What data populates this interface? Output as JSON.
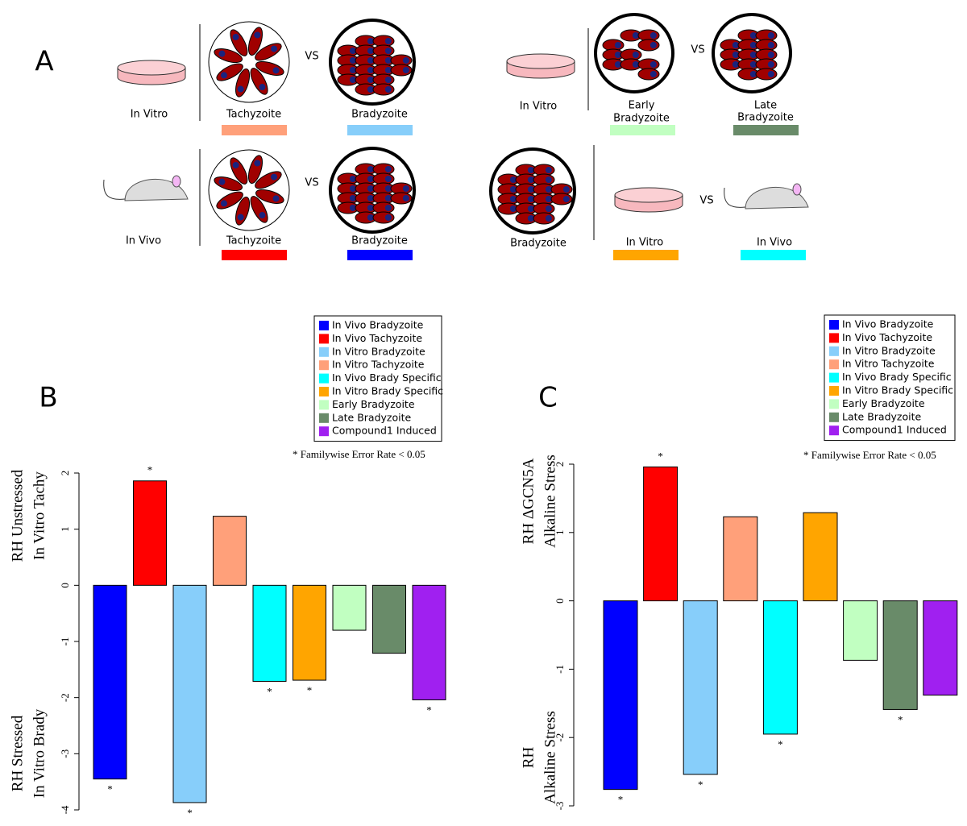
{
  "diagram": {
    "labels": [
      "A",
      "In Vitro",
      "Tachyzoite",
      "VS",
      "Bradyzoite",
      "In Vitro",
      "Early",
      "Bradyzoite",
      "VS",
      "Late",
      "Bradyzoite",
      "In Vivo",
      "Tachyzoite",
      "VS",
      "Bradyzoite",
      "Bradyzoite",
      "In Vitro",
      "VS",
      "In Vivo"
    ]
  },
  "chart_data": [
    {
      "type": "bar",
      "panel_label": "B",
      "ylabel_top": [
        "RH Unstressed",
        "In Vitro Tachy"
      ],
      "ylabel_bottom": [
        "RH Stressed",
        "In Vitro Brady"
      ],
      "footnote": "* Familywise Error Rate < 0.05",
      "ylim": [
        -4,
        2
      ],
      "yticks": [
        -4,
        -3,
        -2,
        -1,
        0,
        1,
        2
      ],
      "series": [
        {
          "name": "In Vivo Bradyzoite",
          "color": "#0000ff",
          "values": [
            -3.45
          ],
          "annotation": "*"
        },
        {
          "name": "In Vivo Tachyzoite",
          "color": "#ff0000",
          "values": [
            1.86
          ],
          "annotation": "*"
        },
        {
          "name": "In Vitro Bradyzoite",
          "color": "#87cefa",
          "values": [
            -3.87
          ],
          "annotation": "*"
        },
        {
          "name": "In Vitro Tachyzoite",
          "color": "#ffa07a",
          "values": [
            1.23
          ]
        },
        {
          "name": "In Vivo Brady Specific",
          "color": "#00ffff",
          "values": [
            -1.71
          ],
          "annotation": "*"
        },
        {
          "name": "In Vitro Brady Specific",
          "color": "#ffa500",
          "values": [
            -1.69
          ],
          "annotation": "*"
        },
        {
          "name": "Early Bradyzoite",
          "color": "#c1ffc1",
          "values": [
            -0.8
          ]
        },
        {
          "name": "Late Bradyzoite",
          "color": "#698b69",
          "values": [
            -1.21
          ]
        },
        {
          "name": "Compound1 Induced",
          "color": "#a020f0",
          "values": [
            -2.04
          ],
          "annotation": "*"
        }
      ]
    },
    {
      "type": "bar",
      "panel_label": "C",
      "ylabel_top": [
        "RH ΔGCN5A",
        "Alkaline Stress"
      ],
      "ylabel_bottom": [
        "RH",
        "Alkaline Stress"
      ],
      "footnote": "* Familywise Error Rate < 0.05",
      "ylim": [
        -3,
        2
      ],
      "yticks": [
        -3,
        -2,
        -1,
        0,
        1,
        2
      ],
      "series": [
        {
          "name": "In Vivo Bradyzoite",
          "color": "#0000ff",
          "values": [
            -2.76
          ],
          "annotation": "*"
        },
        {
          "name": "In Vivo Tachyzoite",
          "color": "#ff0000",
          "values": [
            1.96
          ],
          "annotation": "*"
        },
        {
          "name": "In Vitro Bradyzoite",
          "color": "#87cefa",
          "values": [
            -2.54
          ],
          "annotation": "*"
        },
        {
          "name": "In Vitro Tachyzoite",
          "color": "#ffa07a",
          "values": [
            1.23
          ]
        },
        {
          "name": "In Vivo Brady Specific",
          "color": "#00ffff",
          "values": [
            -1.95
          ],
          "annotation": "*"
        },
        {
          "name": "In Vitro Brady Specific",
          "color": "#ffa500",
          "values": [
            1.29
          ]
        },
        {
          "name": "Early Bradyzoite",
          "color": "#c1ffc1",
          "values": [
            -0.87
          ]
        },
        {
          "name": "Late Bradyzoite",
          "color": "#698b69",
          "values": [
            -1.59
          ],
          "annotation": "*"
        },
        {
          "name": "Compound1 Induced",
          "color": "#a020f0",
          "values": [
            -1.38
          ]
        }
      ]
    }
  ]
}
